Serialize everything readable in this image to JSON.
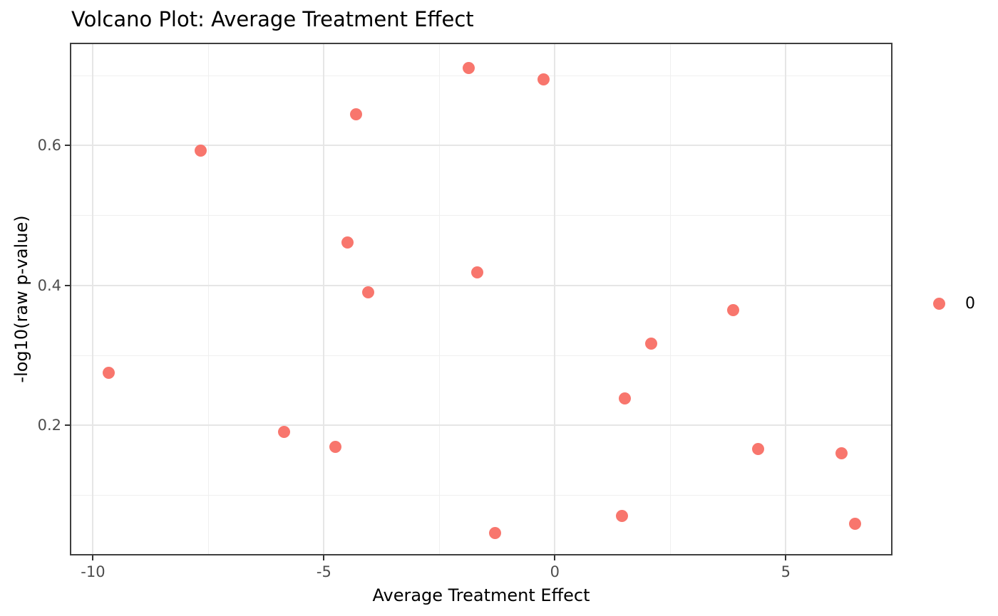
{
  "title": "Volcano Plot: Average Treatment Effect",
  "colors": {
    "point": "#F8766D",
    "grid_major": "#E6E6E6",
    "grid_minor": "#F0F0F0",
    "panel_border": "#3F3F3F",
    "tick_mark": "#333333",
    "tick_label": "#4D4D4D",
    "text": "#000000",
    "background": "#FFFFFF"
  },
  "legend": {
    "position": "right",
    "entries": [
      {
        "label": "0",
        "color": "#F8766D"
      }
    ]
  },
  "chart_data": {
    "type": "scatter",
    "title": "Volcano Plot: Average Treatment Effect",
    "xlabel": "Average Treatment Effect",
    "ylabel": "-log10(raw p-value)",
    "xlim": [
      -10.47,
      7.28
    ],
    "ylim": [
      0.016,
      0.745
    ],
    "x_ticks": [
      -10,
      -5,
      0,
      5
    ],
    "y_ticks": [
      0.2,
      0.4,
      0.6
    ],
    "x_minor_ticks": [
      -7.5,
      -2.5,
      2.5
    ],
    "y_minor_ticks": [
      0.1,
      0.3,
      0.5,
      0.7
    ],
    "grid": true,
    "legend_position": "right",
    "series": [
      {
        "name": "0",
        "color": "#F8766D",
        "points": [
          {
            "x": -1.87,
            "y": 0.711
          },
          {
            "x": -0.24,
            "y": 0.695
          },
          {
            "x": -4.31,
            "y": 0.645
          },
          {
            "x": -7.67,
            "y": 0.593
          },
          {
            "x": -4.49,
            "y": 0.461
          },
          {
            "x": -1.68,
            "y": 0.419
          },
          {
            "x": -4.04,
            "y": 0.39
          },
          {
            "x": 3.86,
            "y": 0.365
          },
          {
            "x": 2.08,
            "y": 0.317
          },
          {
            "x": -9.66,
            "y": 0.275
          },
          {
            "x": 1.51,
            "y": 0.238
          },
          {
            "x": -5.87,
            "y": 0.191
          },
          {
            "x": -4.75,
            "y": 0.169
          },
          {
            "x": 4.4,
            "y": 0.166
          },
          {
            "x": 6.2,
            "y": 0.16
          },
          {
            "x": 1.46,
            "y": 0.07
          },
          {
            "x": 6.5,
            "y": 0.059
          },
          {
            "x": -1.29,
            "y": 0.046
          }
        ]
      }
    ]
  }
}
